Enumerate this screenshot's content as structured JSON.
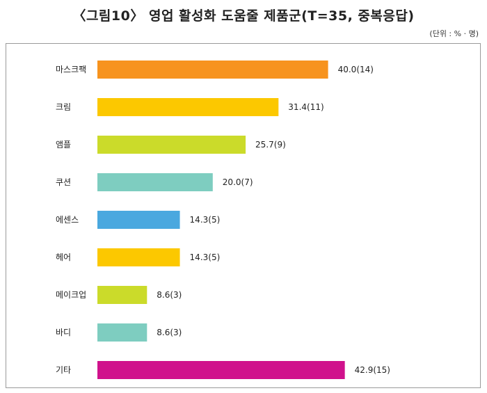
{
  "header": {
    "title": "〈그림10〉 영업 활성화 도움줄 제품군(T=35, 중복응답)",
    "unit": "(단위 : % · 명)"
  },
  "chart_data": {
    "type": "bar",
    "orientation": "horizontal",
    "categories": [
      "마스크팩",
      "크림",
      "앰플",
      "쿠션",
      "에센스",
      "헤어",
      "메이크업",
      "바디",
      "기타"
    ],
    "values": [
      40.0,
      31.4,
      25.7,
      20.0,
      14.3,
      14.3,
      8.6,
      8.6,
      42.9
    ],
    "counts": [
      14,
      11,
      9,
      7,
      5,
      5,
      3,
      3,
      15
    ],
    "data_labels": [
      "40.0(14)",
      "31.4(11)",
      "25.7(9)",
      "20.0(7)",
      "14.3(5)",
      "14.3(5)",
      "8.6(3)",
      "8.6(3)",
      "42.9(15)"
    ],
    "colors": [
      "#F7931E",
      "#FCC800",
      "#CBDB2A",
      "#7ECDC0",
      "#4AA8DF",
      "#FCC800",
      "#CBDB2A",
      "#7ECDC0",
      "#D0128C"
    ],
    "grid": false,
    "legend": "none"
  }
}
